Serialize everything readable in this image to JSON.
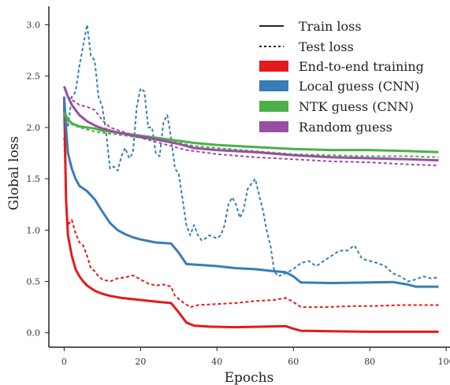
{
  "chart_data": {
    "type": "line",
    "xlabel": "Epochs",
    "ylabel": "Global loss",
    "xlim": [
      -4,
      101
    ],
    "ylim": [
      -0.14,
      3.18
    ],
    "xticks": [
      0,
      20,
      40,
      60,
      80,
      100
    ],
    "yticks": [
      0.0,
      0.5,
      1.0,
      1.5,
      2.0,
      2.5,
      3.0
    ],
    "xtick_labels": [
      "0",
      "20",
      "40",
      "60",
      "80",
      "100"
    ],
    "ytick_labels": [
      "0.0",
      "0.5",
      "1.0",
      "1.5",
      "2.0",
      "2.5",
      "3.0"
    ],
    "grid": false,
    "legend_position": "top-right",
    "legend": {
      "styles": [
        {
          "label": "Train loss",
          "dash": "solid"
        },
        {
          "label": "Test loss",
          "dash": "dashed"
        }
      ],
      "methods": [
        {
          "label": "End-to-end training",
          "color": "#e41a1c"
        },
        {
          "label": "Local guess (CNN)",
          "color": "#377eb8"
        },
        {
          "label": "NTK guess (CNN)",
          "color": "#4daf4a"
        },
        {
          "label": "Random guess",
          "color": "#984ea3"
        }
      ]
    },
    "series": [
      {
        "name": "End-to-end training",
        "kind": "Train loss",
        "color": "#e41a1c",
        "points": [
          [
            0,
            2.3
          ],
          [
            0.5,
            1.3
          ],
          [
            1,
            0.95
          ],
          [
            2,
            0.75
          ],
          [
            3,
            0.62
          ],
          [
            4,
            0.55
          ],
          [
            5,
            0.5
          ],
          [
            6,
            0.46
          ],
          [
            8,
            0.41
          ],
          [
            10,
            0.38
          ],
          [
            12,
            0.36
          ],
          [
            15,
            0.34
          ],
          [
            20,
            0.32
          ],
          [
            25,
            0.3
          ],
          [
            28,
            0.29
          ],
          [
            30,
            0.2
          ],
          [
            32,
            0.1
          ],
          [
            34,
            0.07
          ],
          [
            38,
            0.06
          ],
          [
            45,
            0.055
          ],
          [
            52,
            0.06
          ],
          [
            58,
            0.065
          ],
          [
            60,
            0.04
          ],
          [
            62,
            0.02
          ],
          [
            70,
            0.015
          ],
          [
            80,
            0.01
          ],
          [
            90,
            0.01
          ],
          [
            98,
            0.01
          ]
        ]
      },
      {
        "name": "End-to-end training",
        "kind": "Test loss",
        "color": "#e41a1c",
        "points": [
          [
            0,
            1.9
          ],
          [
            0.5,
            1.3
          ],
          [
            1,
            1.05
          ],
          [
            2,
            1.1
          ],
          [
            3,
            0.97
          ],
          [
            4,
            0.88
          ],
          [
            5,
            0.85
          ],
          [
            6,
            0.75
          ],
          [
            7,
            0.63
          ],
          [
            8,
            0.6
          ],
          [
            9,
            0.55
          ],
          [
            10,
            0.52
          ],
          [
            12,
            0.5
          ],
          [
            14,
            0.53
          ],
          [
            16,
            0.54
          ],
          [
            18,
            0.56
          ],
          [
            20,
            0.52
          ],
          [
            22,
            0.48
          ],
          [
            24,
            0.46
          ],
          [
            26,
            0.47
          ],
          [
            28,
            0.45
          ],
          [
            29,
            0.36
          ],
          [
            31,
            0.3
          ],
          [
            33,
            0.25
          ],
          [
            35,
            0.27
          ],
          [
            40,
            0.28
          ],
          [
            45,
            0.29
          ],
          [
            50,
            0.31
          ],
          [
            55,
            0.32
          ],
          [
            58,
            0.34
          ],
          [
            60,
            0.3
          ],
          [
            62,
            0.25
          ],
          [
            68,
            0.25
          ],
          [
            75,
            0.26
          ],
          [
            80,
            0.26
          ],
          [
            88,
            0.27
          ],
          [
            98,
            0.27
          ]
        ]
      },
      {
        "name": "Local guess (CNN)",
        "kind": "Train loss",
        "color": "#377eb8",
        "points": [
          [
            0,
            2.3
          ],
          [
            0.5,
            2.0
          ],
          [
            1,
            1.75
          ],
          [
            2,
            1.6
          ],
          [
            3,
            1.5
          ],
          [
            4,
            1.43
          ],
          [
            6,
            1.38
          ],
          [
            8,
            1.3
          ],
          [
            10,
            1.18
          ],
          [
            12,
            1.07
          ],
          [
            14,
            1.0
          ],
          [
            16,
            0.96
          ],
          [
            18,
            0.93
          ],
          [
            20,
            0.91
          ],
          [
            24,
            0.88
          ],
          [
            28,
            0.87
          ],
          [
            30,
            0.78
          ],
          [
            32,
            0.67
          ],
          [
            34,
            0.665
          ],
          [
            40,
            0.65
          ],
          [
            45,
            0.63
          ],
          [
            50,
            0.62
          ],
          [
            55,
            0.6
          ],
          [
            58,
            0.59
          ],
          [
            60,
            0.55
          ],
          [
            62,
            0.49
          ],
          [
            70,
            0.485
          ],
          [
            80,
            0.49
          ],
          [
            86,
            0.495
          ],
          [
            90,
            0.47
          ],
          [
            92,
            0.45
          ],
          [
            98,
            0.45
          ]
        ]
      },
      {
        "name": "Local guess (CNN)",
        "kind": "Test loss",
        "color": "#377eb8",
        "points": [
          [
            0,
            2.2
          ],
          [
            1,
            2.0
          ],
          [
            2,
            2.3
          ],
          [
            3,
            2.35
          ],
          [
            4,
            2.6
          ],
          [
            5,
            2.8
          ],
          [
            6,
            3.0
          ],
          [
            7,
            2.7
          ],
          [
            8,
            2.65
          ],
          [
            9,
            2.3
          ],
          [
            10,
            2.2
          ],
          [
            11,
            1.95
          ],
          [
            12,
            1.6
          ],
          [
            13,
            1.62
          ],
          [
            14,
            1.58
          ],
          [
            15,
            1.72
          ],
          [
            16,
            1.8
          ],
          [
            17,
            1.7
          ],
          [
            18,
            1.75
          ],
          [
            19,
            2.2
          ],
          [
            20,
            2.38
          ],
          [
            21,
            2.35
          ],
          [
            22,
            2.0
          ],
          [
            23,
            2.0
          ],
          [
            24,
            1.75
          ],
          [
            25,
            1.72
          ],
          [
            26,
            2.05
          ],
          [
            27,
            2.12
          ],
          [
            28,
            1.9
          ],
          [
            29,
            1.6
          ],
          [
            30,
            1.55
          ],
          [
            31,
            1.3
          ],
          [
            32,
            1.05
          ],
          [
            33,
            0.95
          ],
          [
            34,
            1.05
          ],
          [
            35,
            0.95
          ],
          [
            36,
            0.9
          ],
          [
            37,
            0.92
          ],
          [
            38,
            0.95
          ],
          [
            40,
            0.92
          ],
          [
            41,
            0.95
          ],
          [
            42,
            1.05
          ],
          [
            43,
            1.25
          ],
          [
            44,
            1.32
          ],
          [
            45,
            1.25
          ],
          [
            46,
            1.12
          ],
          [
            47,
            1.2
          ],
          [
            48,
            1.4
          ],
          [
            49,
            1.45
          ],
          [
            50,
            1.5
          ],
          [
            51,
            1.35
          ],
          [
            52,
            1.2
          ],
          [
            53,
            1.0
          ],
          [
            54,
            0.85
          ],
          [
            55,
            0.6
          ],
          [
            56,
            0.55
          ],
          [
            58,
            0.58
          ],
          [
            60,
            0.62
          ],
          [
            62,
            0.68
          ],
          [
            64,
            0.7
          ],
          [
            66,
            0.65
          ],
          [
            68,
            0.7
          ],
          [
            70,
            0.75
          ],
          [
            72,
            0.8
          ],
          [
            74,
            0.8
          ],
          [
            76,
            0.85
          ],
          [
            78,
            0.72
          ],
          [
            80,
            0.7
          ],
          [
            82,
            0.68
          ],
          [
            84,
            0.65
          ],
          [
            86,
            0.58
          ],
          [
            88,
            0.55
          ],
          [
            90,
            0.5
          ],
          [
            92,
            0.52
          ],
          [
            94,
            0.55
          ],
          [
            96,
            0.53
          ],
          [
            98,
            0.54
          ]
        ]
      },
      {
        "name": "NTK guess (CNN)",
        "kind": "Train loss",
        "color": "#4daf4a",
        "points": [
          [
            0,
            2.15
          ],
          [
            1,
            2.08
          ],
          [
            2,
            2.04
          ],
          [
            4,
            2.01
          ],
          [
            6,
            2.0
          ],
          [
            8,
            1.99
          ],
          [
            10,
            1.97
          ],
          [
            14,
            1.95
          ],
          [
            18,
            1.93
          ],
          [
            22,
            1.91
          ],
          [
            26,
            1.89
          ],
          [
            30,
            1.87
          ],
          [
            34,
            1.85
          ],
          [
            40,
            1.83
          ],
          [
            50,
            1.81
          ],
          [
            60,
            1.79
          ],
          [
            70,
            1.78
          ],
          [
            80,
            1.78
          ],
          [
            90,
            1.77
          ],
          [
            98,
            1.76
          ]
        ]
      },
      {
        "name": "NTK guess (CNN)",
        "kind": "Test loss",
        "color": "#4daf4a",
        "points": [
          [
            0,
            2.12
          ],
          [
            1,
            2.06
          ],
          [
            2,
            2.03
          ],
          [
            4,
            2.0
          ],
          [
            6,
            1.98
          ],
          [
            8,
            1.96
          ],
          [
            10,
            1.95
          ],
          [
            14,
            1.93
          ],
          [
            18,
            1.91
          ],
          [
            22,
            1.89
          ],
          [
            26,
            1.87
          ],
          [
            30,
            1.85
          ],
          [
            34,
            1.82
          ],
          [
            40,
            1.8
          ],
          [
            50,
            1.77
          ],
          [
            60,
            1.74
          ],
          [
            70,
            1.73
          ],
          [
            80,
            1.72
          ],
          [
            90,
            1.72
          ],
          [
            98,
            1.71
          ]
        ]
      },
      {
        "name": "Random guess",
        "kind": "Train loss",
        "color": "#984ea3",
        "points": [
          [
            0,
            2.4
          ],
          [
            1,
            2.3
          ],
          [
            2,
            2.22
          ],
          [
            4,
            2.12
          ],
          [
            6,
            2.06
          ],
          [
            8,
            2.02
          ],
          [
            10,
            1.99
          ],
          [
            14,
            1.95
          ],
          [
            18,
            1.92
          ],
          [
            22,
            1.9
          ],
          [
            26,
            1.87
          ],
          [
            30,
            1.84
          ],
          [
            34,
            1.8
          ],
          [
            40,
            1.78
          ],
          [
            50,
            1.76
          ],
          [
            60,
            1.73
          ],
          [
            70,
            1.71
          ],
          [
            80,
            1.7
          ],
          [
            90,
            1.69
          ],
          [
            98,
            1.68
          ]
        ]
      },
      {
        "name": "Random guess",
        "kind": "Test loss",
        "color": "#984ea3",
        "points": [
          [
            0,
            2.4
          ],
          [
            1,
            2.3
          ],
          [
            2,
            2.27
          ],
          [
            4,
            2.22
          ],
          [
            6,
            2.2
          ],
          [
            8,
            2.17
          ],
          [
            10,
            2.07
          ],
          [
            12,
            2.0
          ],
          [
            16,
            1.95
          ],
          [
            20,
            1.9
          ],
          [
            24,
            1.86
          ],
          [
            28,
            1.82
          ],
          [
            32,
            1.78
          ],
          [
            40,
            1.74
          ],
          [
            50,
            1.71
          ],
          [
            60,
            1.69
          ],
          [
            70,
            1.67
          ],
          [
            80,
            1.66
          ],
          [
            90,
            1.64
          ],
          [
            98,
            1.63
          ]
        ]
      }
    ]
  }
}
